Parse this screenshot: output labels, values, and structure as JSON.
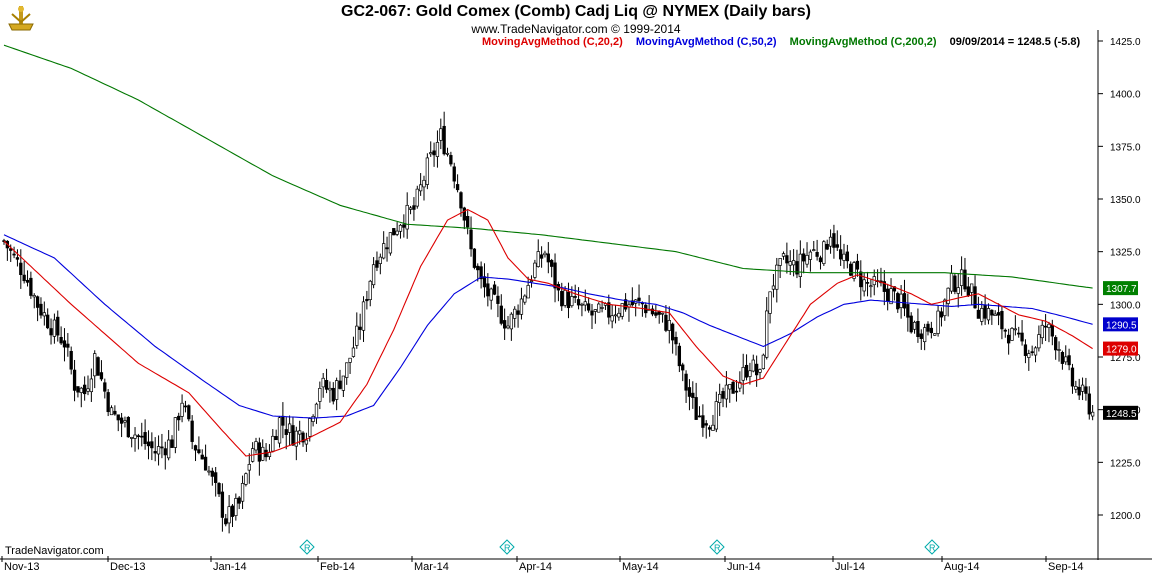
{
  "header": {
    "title": "GC2-067:  Gold Comex (Comb) Cadj Liq @ NYMEX  (Daily bars)",
    "copyright": "www.TradeNavigator.com © 1999-2014"
  },
  "legend": {
    "ma20": {
      "label": "MovingAvgMethod (C,20,2)",
      "color": "#dd0000"
    },
    "ma50": {
      "label": "MovingAvgMethod (C,50,2)",
      "color": "#0000dd"
    },
    "ma200": {
      "label": "MovingAvgMethod (C,200,2)",
      "color": "#007700"
    },
    "last_info": "09/09/2014 = 1248.5 (-5.8)"
  },
  "footer": {
    "brand": "TradeNavigator.com"
  },
  "chart_data": {
    "type": "candlestick",
    "title": "GC2-067:  Gold Comex (Comb) Cadj Liq @ NYMEX  (Daily bars)",
    "ylim": [
      1185,
      1435
    ],
    "y_ticks": [
      "1425.0",
      "1400.0",
      "1375.0",
      "1350.0",
      "1325.0",
      "1300.0",
      "1275.0",
      "1250.0",
      "1225.0",
      "1200.0"
    ],
    "x_ticks": [
      "Nov-13",
      "Dec-13",
      "Jan-14",
      "Feb-14",
      "Mar-14",
      "Apr-14",
      "May-14",
      "Jun-14",
      "Jul-14",
      "Aug-14",
      "Sep-14"
    ],
    "price_tags": [
      {
        "label": "1307.7",
        "bg": "#008000",
        "fg": "#ffffff"
      },
      {
        "label": "1290.5",
        "bg": "#0000cc",
        "fg": "#ffffff"
      },
      {
        "label": "1279.0",
        "bg": "#dd0000",
        "fg": "#ffffff"
      },
      {
        "label": "1248.5",
        "bg": "#000000",
        "fg": "#ffffff"
      }
    ],
    "close_path": [
      [
        0,
        1330
      ],
      [
        3,
        1322
      ],
      [
        6,
        1315
      ],
      [
        10,
        1300
      ],
      [
        14,
        1290
      ],
      [
        18,
        1282
      ],
      [
        21,
        1262
      ],
      [
        24,
        1258
      ],
      [
        27,
        1275
      ],
      [
        32,
        1248
      ],
      [
        38,
        1240
      ],
      [
        45,
        1230
      ],
      [
        50,
        1235
      ],
      [
        53,
        1255
      ],
      [
        56,
        1235
      ],
      [
        60,
        1225
      ],
      [
        66,
        1198
      ],
      [
        70,
        1205
      ],
      [
        74,
        1232
      ],
      [
        78,
        1228
      ],
      [
        82,
        1245
      ],
      [
        86,
        1238
      ],
      [
        90,
        1240
      ],
      [
        94,
        1262
      ],
      [
        98,
        1258
      ],
      [
        102,
        1270
      ],
      [
        106,
        1290
      ],
      [
        110,
        1320
      ],
      [
        114,
        1330
      ],
      [
        118,
        1340
      ],
      [
        122,
        1345
      ],
      [
        126,
        1365
      ],
      [
        130,
        1380
      ],
      [
        133,
        1368
      ],
      [
        136,
        1350
      ],
      [
        139,
        1325
      ],
      [
        142,
        1310
      ],
      [
        146,
        1300
      ],
      [
        150,
        1290
      ],
      [
        154,
        1302
      ],
      [
        158,
        1318
      ],
      [
        161,
        1325
      ],
      [
        165,
        1305
      ],
      [
        170,
        1300
      ],
      [
        175,
        1295
      ],
      [
        180,
        1296
      ],
      [
        185,
        1300
      ],
      [
        190,
        1300
      ],
      [
        194,
        1295
      ],
      [
        198,
        1290
      ],
      [
        202,
        1265
      ],
      [
        206,
        1248
      ],
      [
        210,
        1245
      ],
      [
        214,
        1255
      ],
      [
        218,
        1262
      ],
      [
        222,
        1272
      ],
      [
        225,
        1265
      ],
      [
        228,
        1308
      ],
      [
        232,
        1320
      ],
      [
        236,
        1318
      ],
      [
        240,
        1325
      ],
      [
        244,
        1325
      ],
      [
        246,
        1335
      ],
      [
        249,
        1320
      ],
      [
        252,
        1318
      ],
      [
        256,
        1310
      ],
      [
        260,
        1308
      ],
      [
        264,
        1305
      ],
      [
        267,
        1300
      ],
      [
        270,
        1290
      ],
      [
        274,
        1288
      ],
      [
        278,
        1292
      ],
      [
        282,
        1310
      ],
      [
        286,
        1312
      ],
      [
        290,
        1298
      ],
      [
        294,
        1295
      ],
      [
        298,
        1288
      ],
      [
        302,
        1282
      ],
      [
        306,
        1278
      ],
      [
        310,
        1290
      ],
      [
        314,
        1280
      ],
      [
        318,
        1262
      ],
      [
        322,
        1255
      ],
      [
        324,
        1248.5
      ]
    ],
    "ma20_path": [
      [
        0,
        1330
      ],
      [
        20,
        1300
      ],
      [
        40,
        1272
      ],
      [
        55,
        1258
      ],
      [
        65,
        1240
      ],
      [
        72,
        1228
      ],
      [
        80,
        1230
      ],
      [
        90,
        1236
      ],
      [
        100,
        1244
      ],
      [
        108,
        1262
      ],
      [
        116,
        1288
      ],
      [
        124,
        1318
      ],
      [
        132,
        1340
      ],
      [
        138,
        1345
      ],
      [
        144,
        1340
      ],
      [
        150,
        1322
      ],
      [
        156,
        1312
      ],
      [
        162,
        1310
      ],
      [
        170,
        1305
      ],
      [
        180,
        1300
      ],
      [
        190,
        1298
      ],
      [
        198,
        1296
      ],
      [
        206,
        1280
      ],
      [
        214,
        1266
      ],
      [
        220,
        1262
      ],
      [
        226,
        1265
      ],
      [
        232,
        1280
      ],
      [
        240,
        1300
      ],
      [
        248,
        1310
      ],
      [
        254,
        1314
      ],
      [
        262,
        1310
      ],
      [
        270,
        1305
      ],
      [
        276,
        1300
      ],
      [
        284,
        1303
      ],
      [
        290,
        1305
      ],
      [
        296,
        1300
      ],
      [
        302,
        1295
      ],
      [
        310,
        1292
      ],
      [
        318,
        1285
      ],
      [
        324,
        1279
      ]
    ],
    "ma50_path": [
      [
        0,
        1333
      ],
      [
        15,
        1322
      ],
      [
        30,
        1300
      ],
      [
        45,
        1280
      ],
      [
        60,
        1263
      ],
      [
        70,
        1252
      ],
      [
        80,
        1247
      ],
      [
        92,
        1246
      ],
      [
        102,
        1247
      ],
      [
        110,
        1252
      ],
      [
        118,
        1270
      ],
      [
        126,
        1290
      ],
      [
        134,
        1305
      ],
      [
        142,
        1313
      ],
      [
        150,
        1312
      ],
      [
        158,
        1310
      ],
      [
        166,
        1308
      ],
      [
        174,
        1305
      ],
      [
        184,
        1302
      ],
      [
        194,
        1300
      ],
      [
        202,
        1296
      ],
      [
        210,
        1290
      ],
      [
        218,
        1285
      ],
      [
        226,
        1280
      ],
      [
        234,
        1286
      ],
      [
        242,
        1294
      ],
      [
        250,
        1300
      ],
      [
        258,
        1302
      ],
      [
        266,
        1301
      ],
      [
        274,
        1300
      ],
      [
        282,
        1299
      ],
      [
        290,
        1300
      ],
      [
        298,
        1299
      ],
      [
        306,
        1298
      ],
      [
        316,
        1294
      ],
      [
        324,
        1290.5
      ]
    ],
    "ma200_path": [
      [
        0,
        1423
      ],
      [
        20,
        1412
      ],
      [
        40,
        1397
      ],
      [
        60,
        1379
      ],
      [
        80,
        1361
      ],
      [
        100,
        1347
      ],
      [
        120,
        1338
      ],
      [
        140,
        1336
      ],
      [
        160,
        1333
      ],
      [
        180,
        1329
      ],
      [
        200,
        1325
      ],
      [
        220,
        1317
      ],
      [
        240,
        1315
      ],
      [
        260,
        1315
      ],
      [
        280,
        1315
      ],
      [
        300,
        1313
      ],
      [
        324,
        1307.7
      ]
    ]
  }
}
